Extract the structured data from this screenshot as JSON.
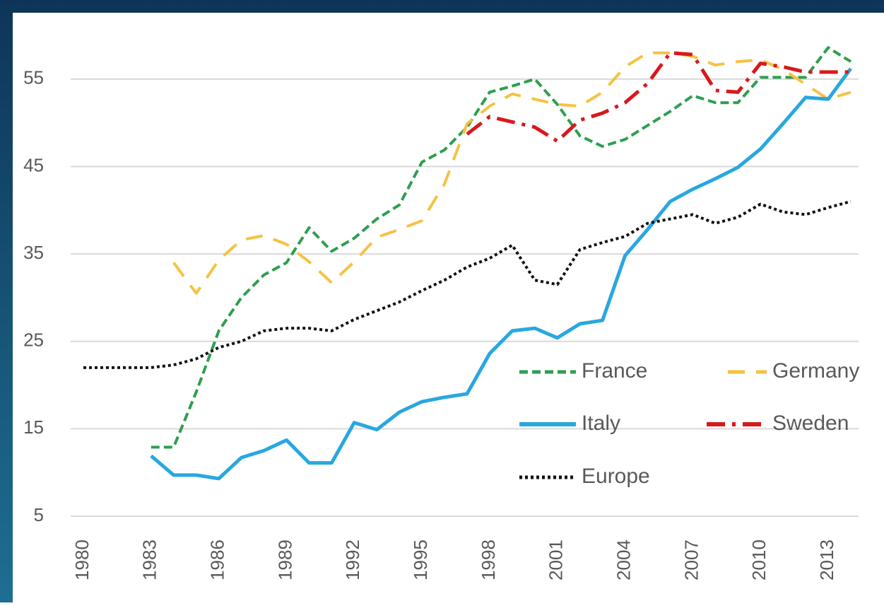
{
  "chart_data": {
    "type": "line",
    "x": [
      1980,
      1981,
      1982,
      1983,
      1984,
      1985,
      1986,
      1987,
      1988,
      1989,
      1990,
      1991,
      1992,
      1993,
      1994,
      1995,
      1996,
      1997,
      1998,
      1999,
      2000,
      2001,
      2002,
      2003,
      2004,
      2005,
      2006,
      2007,
      2008,
      2009,
      2010,
      2011,
      2012,
      2013,
      2014
    ],
    "series": [
      {
        "name": "France",
        "color": "#2e9e4f",
        "line_style": "dashed",
        "values": [
          null,
          null,
          null,
          12.9,
          12.9,
          19.2,
          26.2,
          30,
          32.6,
          34,
          38,
          35.3,
          36.8,
          39,
          40.6,
          45.5,
          46.9,
          49.5,
          53.5,
          54.2,
          55,
          52.1,
          48.5,
          47.3,
          48.1,
          49.7,
          51.3,
          53.1,
          52.3,
          52.3,
          55.2,
          55.2,
          55.2,
          58.6,
          57
        ]
      },
      {
        "name": "Germany",
        "color": "#f5c242",
        "line_style": "long-dashed",
        "values": [
          null,
          null,
          null,
          null,
          34,
          30.5,
          34.3,
          36.6,
          37.1,
          36.1,
          34.1,
          31.7,
          34.1,
          36.9,
          37.8,
          38.8,
          43,
          49.9,
          51.9,
          53.3,
          52.7,
          52.1,
          51.9,
          53.5,
          56.4,
          58,
          58,
          57.6,
          56.6,
          57,
          57.2,
          56.1,
          54.4,
          52.7,
          53.5
        ]
      },
      {
        "name": "Italy",
        "color": "#29a7df",
        "line_style": "solid",
        "values": [
          null,
          null,
          null,
          11.9,
          9.7,
          9.7,
          9.3,
          11.7,
          12.5,
          13.7,
          11.1,
          11.1,
          15.7,
          14.9,
          16.9,
          18.1,
          18.6,
          19,
          23.6,
          26.2,
          26.5,
          25.4,
          27,
          27.4,
          34.8,
          37.8,
          41,
          42.4,
          43.6,
          44.9,
          47,
          49.9,
          52.9,
          52.7,
          56.2
        ]
      },
      {
        "name": "Sweden",
        "color": "#d7191c",
        "line_style": "dash-dot",
        "values": [
          null,
          null,
          null,
          null,
          null,
          null,
          null,
          null,
          null,
          null,
          null,
          null,
          null,
          null,
          null,
          null,
          null,
          48.7,
          50.7,
          50.1,
          49.5,
          47.9,
          50.3,
          51.1,
          52.3,
          54.5,
          58,
          57.8,
          53.7,
          53.5,
          56.8,
          56.4,
          55.8,
          55.8,
          55.8
        ]
      },
      {
        "name": "Europe",
        "color": "#111111",
        "line_style": "dotted",
        "values": [
          22,
          22,
          22,
          22,
          22.3,
          23,
          24.3,
          25,
          26.2,
          26.5,
          26.5,
          26.2,
          27.5,
          28.5,
          29.5,
          30.8,
          32,
          33.5,
          34.5,
          36,
          32,
          31.5,
          35.5,
          36.3,
          37,
          38.5,
          39,
          39.5,
          38.5,
          39.2,
          40.7,
          39.8,
          39.5,
          40.3,
          41
        ]
      }
    ],
    "xlim": [
      1979,
      2015
    ],
    "xticks": [
      1980,
      1983,
      1986,
      1989,
      1992,
      1995,
      1998,
      2001,
      2004,
      2007,
      2010,
      2013
    ],
    "ylim": [
      5,
      60
    ],
    "yticks": [
      5,
      15,
      25,
      35,
      45,
      55
    ],
    "grid": true
  }
}
